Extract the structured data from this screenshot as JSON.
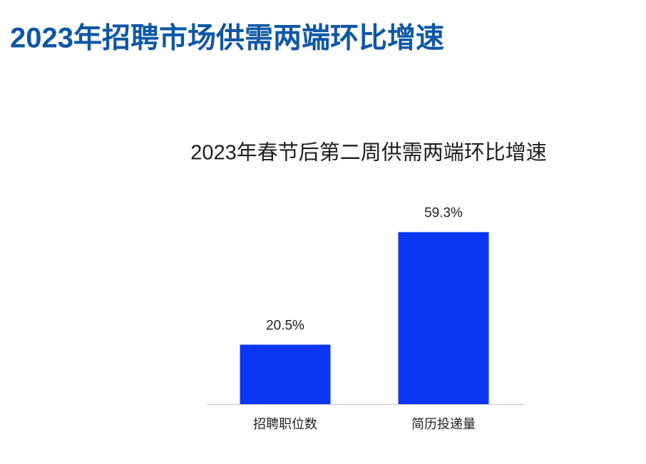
{
  "header": {
    "title": "2023年招聘市场供需两端环比增速"
  },
  "chart_data": {
    "type": "bar",
    "title": "2023年春节后第二周供需两端环比增速",
    "categories": [
      "招聘职位数",
      "简历投递量"
    ],
    "values": [
      20.5,
      59.3
    ],
    "value_labels": [
      "20.5%",
      "59.3%"
    ],
    "color": "#0b37f4"
  }
}
